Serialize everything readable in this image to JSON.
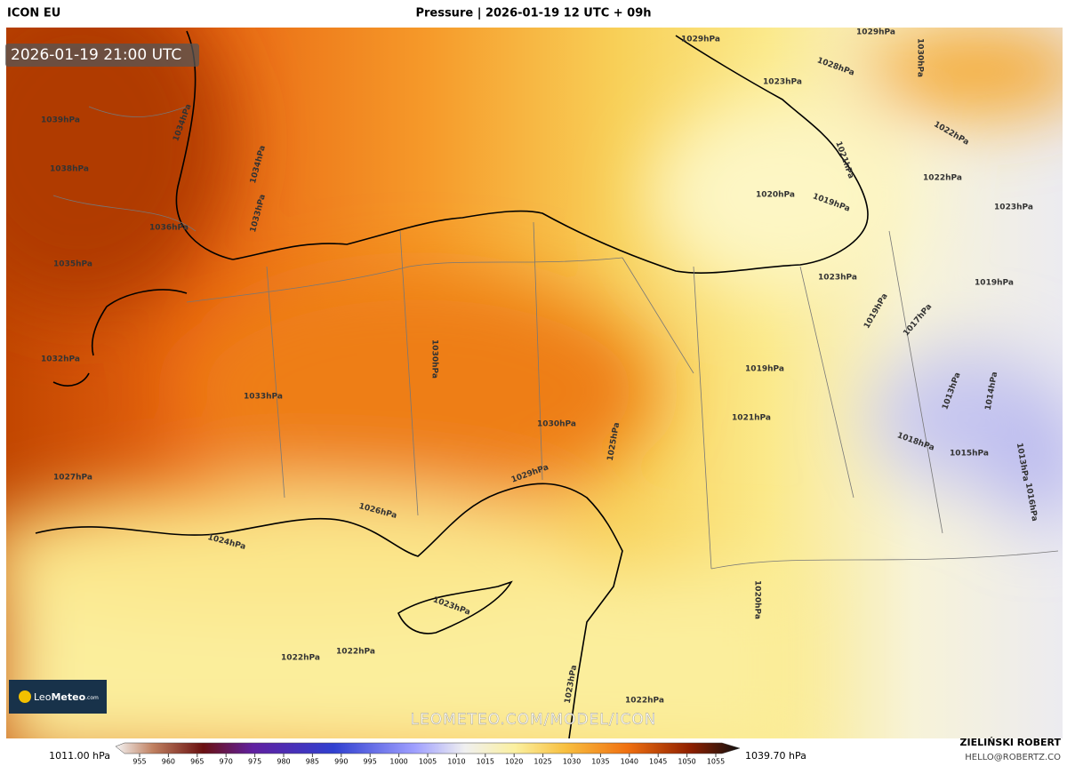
{
  "header": {
    "model": "ICON EU",
    "title": "Pressure | 2026-01-19 12 UTC + 09h"
  },
  "map": {
    "valid_time": "2026-01-19 21:00 UTC",
    "isobar_labels": [
      "1029hPa",
      "1029hPa",
      "1028hPa",
      "1030hPa",
      "1023hPa",
      "1039hPa",
      "1034hPa",
      "1038hPa",
      "1036hPa",
      "1035hPa",
      "1034hPa",
      "1033hPa",
      "1032hPa",
      "1033hPa",
      "1030hPa",
      "1030hPa",
      "1027hPa",
      "1026hPa",
      "1024hPa",
      "1029hPa",
      "1025hPa",
      "1020hPa",
      "1019hPa",
      "1021hPa",
      "1022hPa",
      "1022hPa",
      "1023hPa",
      "1023hPa",
      "1019hPa",
      "1019hPa",
      "1017hPa",
      "1019hPa",
      "1021hPa",
      "1018hPa",
      "1015hPa",
      "1013hPa",
      "1014hPa",
      "1013hPa",
      "1016hPa",
      "1020hPa",
      "1023hPa",
      "1022hPa",
      "1022hPa",
      "1023hPa",
      "1022hPa"
    ],
    "watermark": "LEOMETEO.COM/MODEL/ICON",
    "logo": {
      "brand_light": "Leo",
      "brand_bold": "Meteo",
      "domain": ".com"
    }
  },
  "legend": {
    "min_label": "1011.00 hPa",
    "max_label": "1039.70 hPa",
    "ticks": [
      955,
      960,
      965,
      970,
      975,
      980,
      985,
      990,
      995,
      1000,
      1005,
      1010,
      1015,
      1020,
      1025,
      1030,
      1035,
      1040,
      1045,
      1050,
      1055
    ]
  },
  "footer": {
    "author": "ZIELIŃSKI ROBERT",
    "email": "HELLO@ROBERTZ.CO"
  }
}
